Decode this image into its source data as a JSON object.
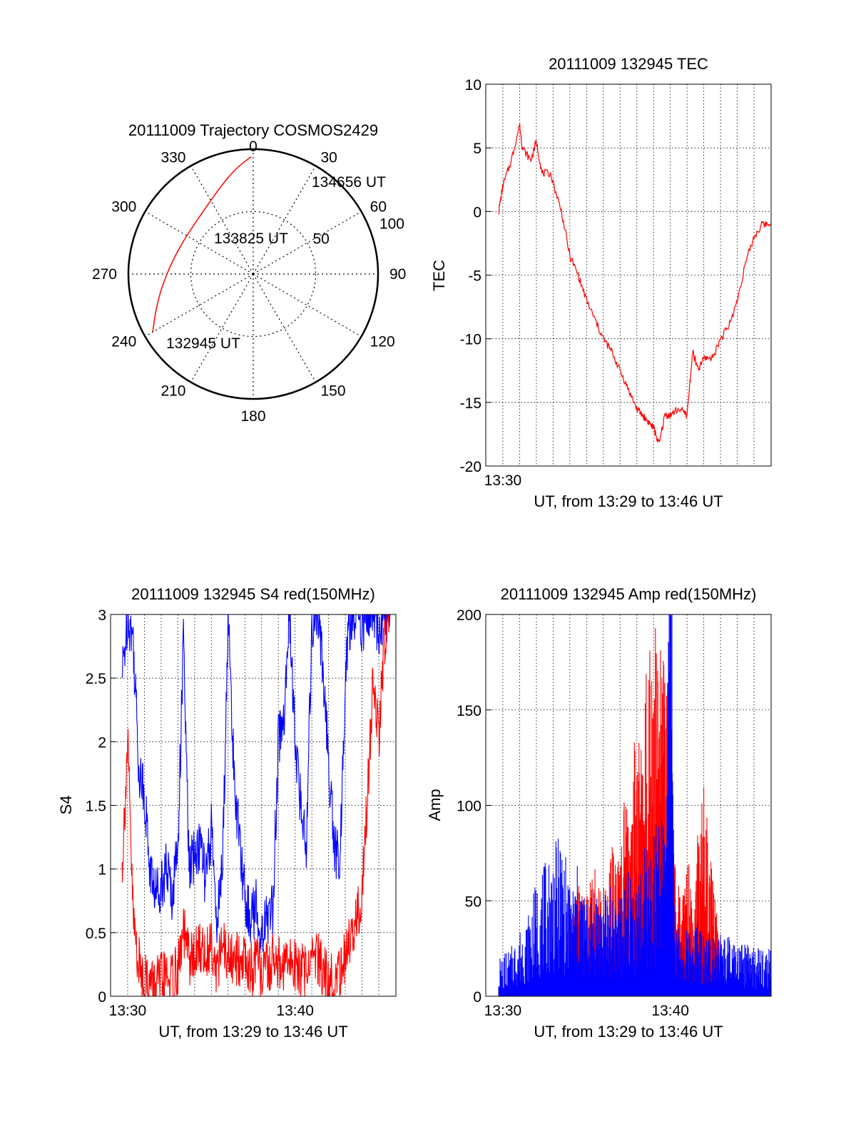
{
  "chart_data": [
    {
      "type": "polar",
      "title": "20111009 Trajectory COSMOS2429",
      "angle_labels": [
        "0",
        "30",
        "60",
        "90",
        "120",
        "150",
        "180",
        "210",
        "240",
        "270",
        "300",
        "330"
      ],
      "radial_labels": [
        "50",
        "100"
      ],
      "start_label": "132945 UT",
      "mid_label": "133825 UT",
      "end_label": "134656 UT",
      "track": [
        {
          "az": 240,
          "zenith": 93
        },
        {
          "az": 250,
          "zenith": 83
        },
        {
          "az": 262,
          "zenith": 74
        },
        {
          "az": 278,
          "zenith": 66
        },
        {
          "az": 295,
          "zenith": 62
        },
        {
          "az": 312,
          "zenith": 62
        },
        {
          "az": 328,
          "zenith": 67
        },
        {
          "az": 341,
          "zenith": 76
        },
        {
          "az": 351,
          "zenith": 86
        },
        {
          "az": 359,
          "zenith": 94
        }
      ],
      "colors": {
        "track": "#ff0000"
      }
    },
    {
      "type": "line",
      "title": "20111009 132945 TEC",
      "ylabel": "TEC",
      "xlabel": "UT, from 13:29 to 13:46 UT",
      "x_tick_labels": [
        "13:30"
      ],
      "y_ticks": [
        "10",
        "5",
        "0",
        "-5",
        "-10",
        "-15",
        "-20"
      ],
      "xlim": [
        13.483,
        13.767
      ],
      "ylim": [
        -20,
        10
      ],
      "grid": true,
      "series": [
        {
          "color": "#ff0000",
          "x": [
            "13:29:45",
            "13:30:00",
            "13:30:30",
            "13:31:00",
            "13:31:10",
            "13:31:40",
            "13:32:00",
            "13:32:20",
            "13:32:50",
            "13:33:30",
            "13:34:00",
            "13:34:30",
            "13:35:00",
            "13:35:30",
            "13:36:00",
            "13:36:30",
            "13:37:00",
            "13:37:30",
            "13:38:00",
            "13:38:20",
            "13:38:40",
            "13:39:00",
            "13:39:20",
            "13:39:40",
            "13:40:00",
            "13:40:30",
            "13:41:00",
            "13:41:20",
            "13:41:40",
            "13:42:00",
            "13:42:30",
            "13:43:00",
            "13:43:30",
            "13:44:00",
            "13:44:30",
            "13:45:00",
            "13:45:30",
            "13:46:00"
          ],
          "y": [
            0,
            2,
            4,
            6.8,
            5,
            4,
            5.5,
            3,
            3,
            0,
            -3.5,
            -5,
            -7,
            -8.5,
            -10,
            -11,
            -12.5,
            -14,
            -15.5,
            -16,
            -16.5,
            -17,
            -18.3,
            -16,
            -16,
            -15.5,
            -16,
            -11,
            -12.5,
            -11.5,
            -11.5,
            -10,
            -9,
            -7,
            -4,
            -2,
            -1,
            -1
          ]
        }
      ]
    },
    {
      "type": "line",
      "title": "20111009 132945 S4 red(150MHz)",
      "ylabel": "S4",
      "xlabel": "UT, from 13:29 to 13:46 UT",
      "x_tick_labels": [
        "13:30",
        "13:40"
      ],
      "y_ticks": [
        "3",
        "2.5",
        "2",
        "1.5",
        "1",
        "0.5",
        "0"
      ],
      "xlim": [
        13.483,
        13.767
      ],
      "ylim": [
        0,
        3
      ],
      "grid": true,
      "series": [
        {
          "color": "#0000ff",
          "x": [
            "13:29:40",
            "13:30:00",
            "13:30:20",
            "13:30:40",
            "13:31:00",
            "13:31:20",
            "13:31:40",
            "13:32:00",
            "13:32:20",
            "13:32:40",
            "13:33:00",
            "13:33:20",
            "13:33:40",
            "13:34:00",
            "13:34:20",
            "13:34:40",
            "13:35:00",
            "13:35:20",
            "13:35:40",
            "13:36:00",
            "13:36:20",
            "13:36:40",
            "13:37:00",
            "13:37:20",
            "13:37:40",
            "13:38:00",
            "13:38:20",
            "13:38:40",
            "13:39:00",
            "13:39:20",
            "13:39:40",
            "13:40:00",
            "13:40:20",
            "13:40:40",
            "13:41:00",
            "13:41:20",
            "13:41:40",
            "13:42:00",
            "13:42:20",
            "13:42:40",
            "13:43:00",
            "13:43:20",
            "13:43:40",
            "13:44:00",
            "13:44:20",
            "13:44:40",
            "13:45:00",
            "13:45:20",
            "13:45:40"
          ],
          "y": [
            2.5,
            3,
            2.8,
            1.8,
            1.6,
            1.0,
            0.8,
            0.9,
            1.0,
            0.8,
            1.2,
            2.8,
            1.0,
            1.1,
            1.2,
            0.9,
            1.3,
            0.6,
            1.0,
            3.0,
            1.8,
            1.2,
            0.8,
            0.6,
            0.7,
            0.5,
            0.6,
            0.7,
            2.0,
            2.2,
            3.0,
            2.0,
            1.5,
            1.2,
            2.9,
            3.0,
            2.6,
            1.8,
            1.2,
            1.0,
            2.5,
            3.0,
            3.0,
            2.9,
            3.0,
            3.0,
            2.9,
            3.0,
            3.0
          ]
        },
        {
          "color": "#ff0000",
          "x": [
            "13:29:40",
            "13:30:00",
            "13:30:20",
            "13:30:40",
            "13:31:00",
            "13:31:20",
            "13:31:40",
            "13:32:00",
            "13:32:20",
            "13:32:40",
            "13:33:00",
            "13:33:20",
            "13:33:40",
            "13:34:00",
            "13:34:20",
            "13:34:40",
            "13:35:00",
            "13:35:20",
            "13:35:40",
            "13:36:00",
            "13:36:20",
            "13:36:40",
            "13:37:00",
            "13:37:20",
            "13:37:40",
            "13:38:00",
            "13:38:20",
            "13:38:40",
            "13:39:00",
            "13:39:20",
            "13:39:40",
            "13:40:00",
            "13:40:20",
            "13:40:40",
            "13:41:00",
            "13:41:20",
            "13:41:40",
            "13:42:00",
            "13:42:20",
            "13:42:40",
            "13:43:00",
            "13:43:20",
            "13:43:40",
            "13:44:00",
            "13:44:20",
            "13:44:40",
            "13:45:00",
            "13:45:20",
            "13:45:40"
          ],
          "y": [
            1.0,
            2.0,
            0.6,
            0.25,
            0.15,
            0.1,
            0.1,
            0.12,
            0.15,
            0.12,
            0.2,
            0.5,
            0.3,
            0.3,
            0.4,
            0.3,
            0.45,
            0.2,
            0.4,
            0.3,
            0.25,
            0.3,
            0.3,
            0.2,
            0.25,
            0.2,
            0.2,
            0.3,
            0.25,
            0.2,
            0.3,
            0.25,
            0.2,
            0.2,
            0.35,
            0.3,
            0.2,
            0.15,
            0.15,
            0.2,
            0.3,
            0.5,
            0.6,
            0.8,
            1.6,
            2.5,
            2.0,
            2.8,
            3.0
          ]
        }
      ]
    },
    {
      "type": "line",
      "title": "20111009 132945 Amp red(150MHz)",
      "ylabel": "Amp",
      "xlabel": "UT, from 13:29 to 13:46 UT",
      "x_tick_labels": [
        "13:30",
        "13:40"
      ],
      "y_ticks": [
        "200",
        "150",
        "100",
        "50",
        "0"
      ],
      "xlim": [
        13.483,
        13.767
      ],
      "ylim": [
        0,
        200
      ],
      "grid": true,
      "series": [
        {
          "color": "#ff0000",
          "x": [
            "13:34:00",
            "13:34:30",
            "13:35:00",
            "13:35:30",
            "13:36:00",
            "13:36:30",
            "13:37:00",
            "13:37:20",
            "13:37:40",
            "13:38:00",
            "13:38:20",
            "13:38:40",
            "13:39:00",
            "13:39:20",
            "13:39:40",
            "13:40:00",
            "13:40:20",
            "13:40:40",
            "13:41:00",
            "13:41:20",
            "13:41:40",
            "13:42:00",
            "13:42:20",
            "13:42:40",
            "13:43:00"
          ],
          "y": [
            25,
            35,
            30,
            40,
            35,
            45,
            45,
            70,
            60,
            90,
            80,
            110,
            135,
            100,
            120,
            70,
            40,
            30,
            45,
            40,
            50,
            65,
            45,
            30,
            20
          ]
        },
        {
          "color": "#0000ff",
          "x": [
            "13:29:45",
            "13:30:30",
            "13:31:00",
            "13:31:30",
            "13:32:00",
            "13:32:30",
            "13:33:00",
            "13:33:30",
            "13:34:00",
            "13:34:30",
            "13:35:00",
            "13:35:30",
            "13:36:00",
            "13:36:30",
            "13:37:00",
            "13:37:30",
            "13:38:00",
            "13:38:30",
            "13:39:00",
            "13:39:30",
            "13:39:45",
            "13:40:00",
            "13:40:15",
            "13:40:30",
            "13:41:00",
            "13:41:30",
            "13:42:00",
            "13:42:30",
            "13:43:00",
            "13:43:30",
            "13:44:00",
            "13:44:30",
            "13:45:00",
            "13:45:30",
            "13:46:00"
          ],
          "y": [
            12,
            15,
            20,
            25,
            35,
            40,
            45,
            50,
            35,
            40,
            30,
            35,
            30,
            35,
            30,
            40,
            35,
            45,
            50,
            55,
            60,
            195,
            25,
            20,
            20,
            25,
            20,
            22,
            20,
            18,
            15,
            16,
            15,
            14,
            15
          ]
        }
      ]
    }
  ]
}
